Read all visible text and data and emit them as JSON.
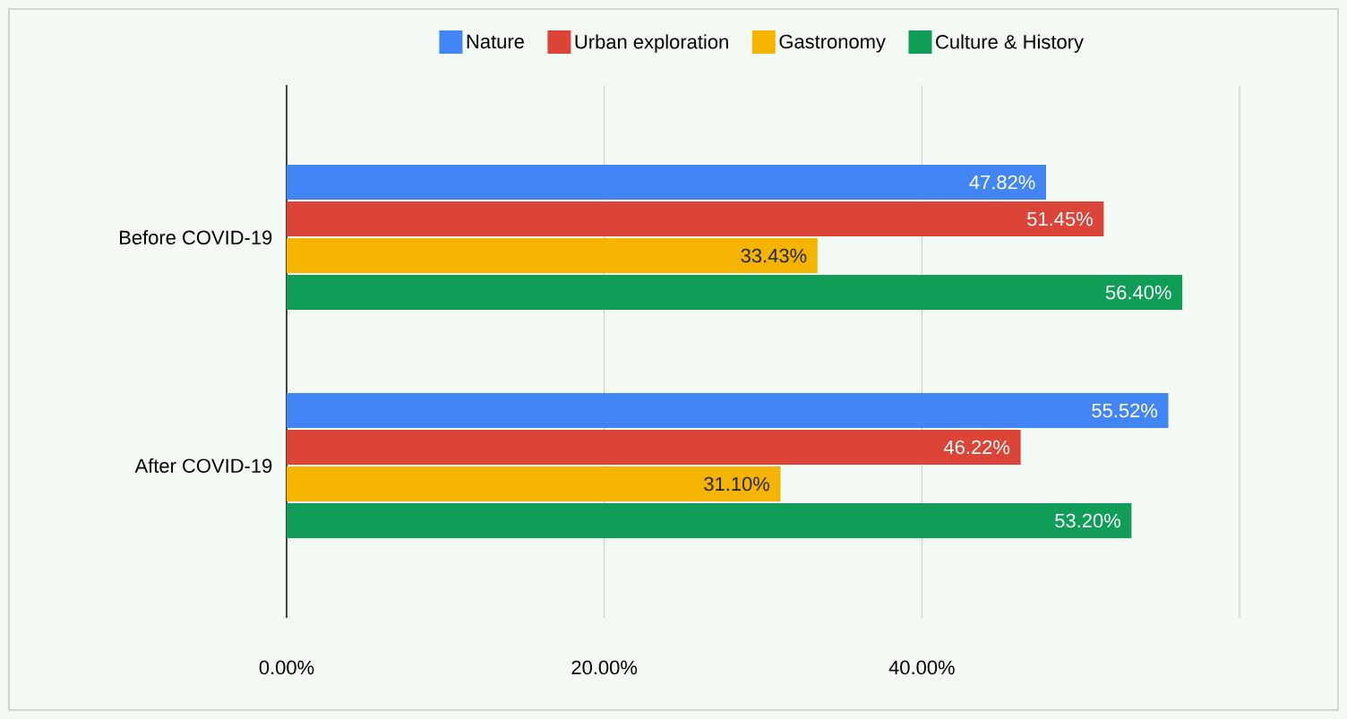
{
  "chart_data": {
    "type": "bar",
    "orientation": "horizontal",
    "categories": [
      "Before COVID-19",
      "After COVID-19"
    ],
    "series": [
      {
        "name": "Nature",
        "color": "#4285f4",
        "values": [
          47.82,
          55.52
        ],
        "value_labels": [
          "47.82%",
          "55.52%"
        ]
      },
      {
        "name": "Urban exploration",
        "color": "#db4437",
        "values": [
          51.45,
          46.22
        ],
        "value_labels": [
          "51.45%",
          "46.22%"
        ]
      },
      {
        "name": "Gastronomy",
        "color": "#f4b400",
        "values": [
          33.43,
          31.1
        ],
        "value_labels": [
          "33.43%",
          "31.10%"
        ]
      },
      {
        "name": "Culture & History",
        "color": "#0f9d58",
        "values": [
          56.4,
          53.2
        ],
        "value_labels": [
          "56.40%",
          "53.20%"
        ]
      }
    ],
    "xlim": [
      0,
      60
    ],
    "xticks": [
      {
        "value": 0,
        "label": "0.00%"
      },
      {
        "value": 20,
        "label": "20.00%"
      },
      {
        "value": 40,
        "label": "40.00%"
      },
      {
        "value": 60,
        "label": null
      }
    ],
    "grid": "x",
    "legend": "top"
  }
}
